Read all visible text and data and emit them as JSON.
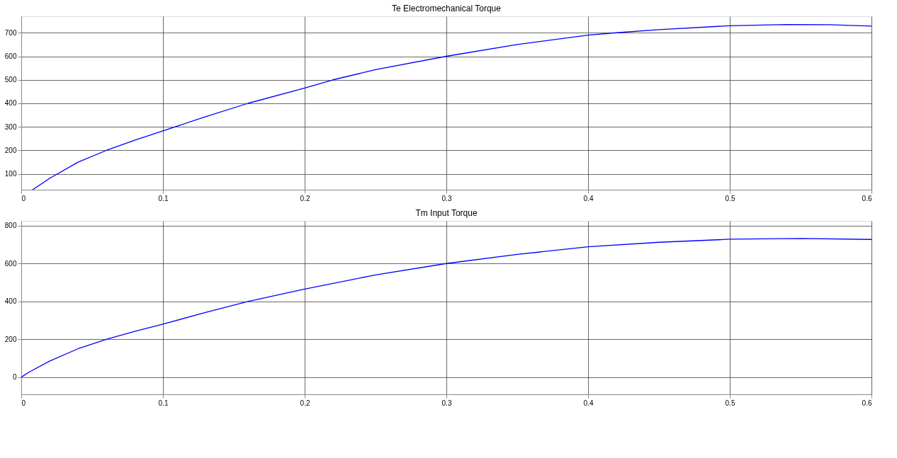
{
  "chart_data": [
    {
      "type": "line",
      "title": "Te Electromechanical Torque",
      "xlim": [
        0,
        0.6
      ],
      "ylim": [
        33,
        770
      ],
      "xticks": [
        0,
        0.1,
        0.2,
        0.3,
        0.4,
        0.5,
        0.6
      ],
      "yticks": [
        100,
        200,
        300,
        400,
        500,
        600,
        700
      ],
      "grid": true,
      "series": [
        {
          "color": "#0000ff",
          "x": [
            0.008,
            0.02,
            0.04,
            0.06,
            0.08,
            0.1,
            0.13,
            0.16,
            0.2,
            0.22,
            0.25,
            0.3,
            0.35,
            0.4,
            0.42,
            0.45,
            0.5,
            0.54,
            0.57,
            0.6
          ],
          "values": [
            33,
            81,
            150,
            200,
            243,
            283,
            343,
            400,
            465,
            500,
            543,
            600,
            650,
            690,
            700,
            713,
            730,
            735,
            734,
            728
          ]
        }
      ]
    },
    {
      "type": "line",
      "title": "Tm Input Torque",
      "xlim": [
        0,
        0.6
      ],
      "ylim": [
        -90,
        825
      ],
      "xticks": [
        0,
        0.1,
        0.2,
        0.3,
        0.4,
        0.5,
        0.6
      ],
      "yticks": [
        0,
        200,
        400,
        600,
        800
      ],
      "grid": true,
      "series": [
        {
          "color": "#0000ff",
          "x": [
            0,
            0.005,
            0.02,
            0.04,
            0.06,
            0.08,
            0.1,
            0.13,
            0.16,
            0.2,
            0.25,
            0.3,
            0.35,
            0.4,
            0.45,
            0.5,
            0.55,
            0.6
          ],
          "values": [
            0,
            25,
            85,
            150,
            200,
            242,
            280,
            342,
            400,
            465,
            540,
            600,
            648,
            688,
            712,
            728,
            732,
            727
          ]
        }
      ]
    }
  ]
}
